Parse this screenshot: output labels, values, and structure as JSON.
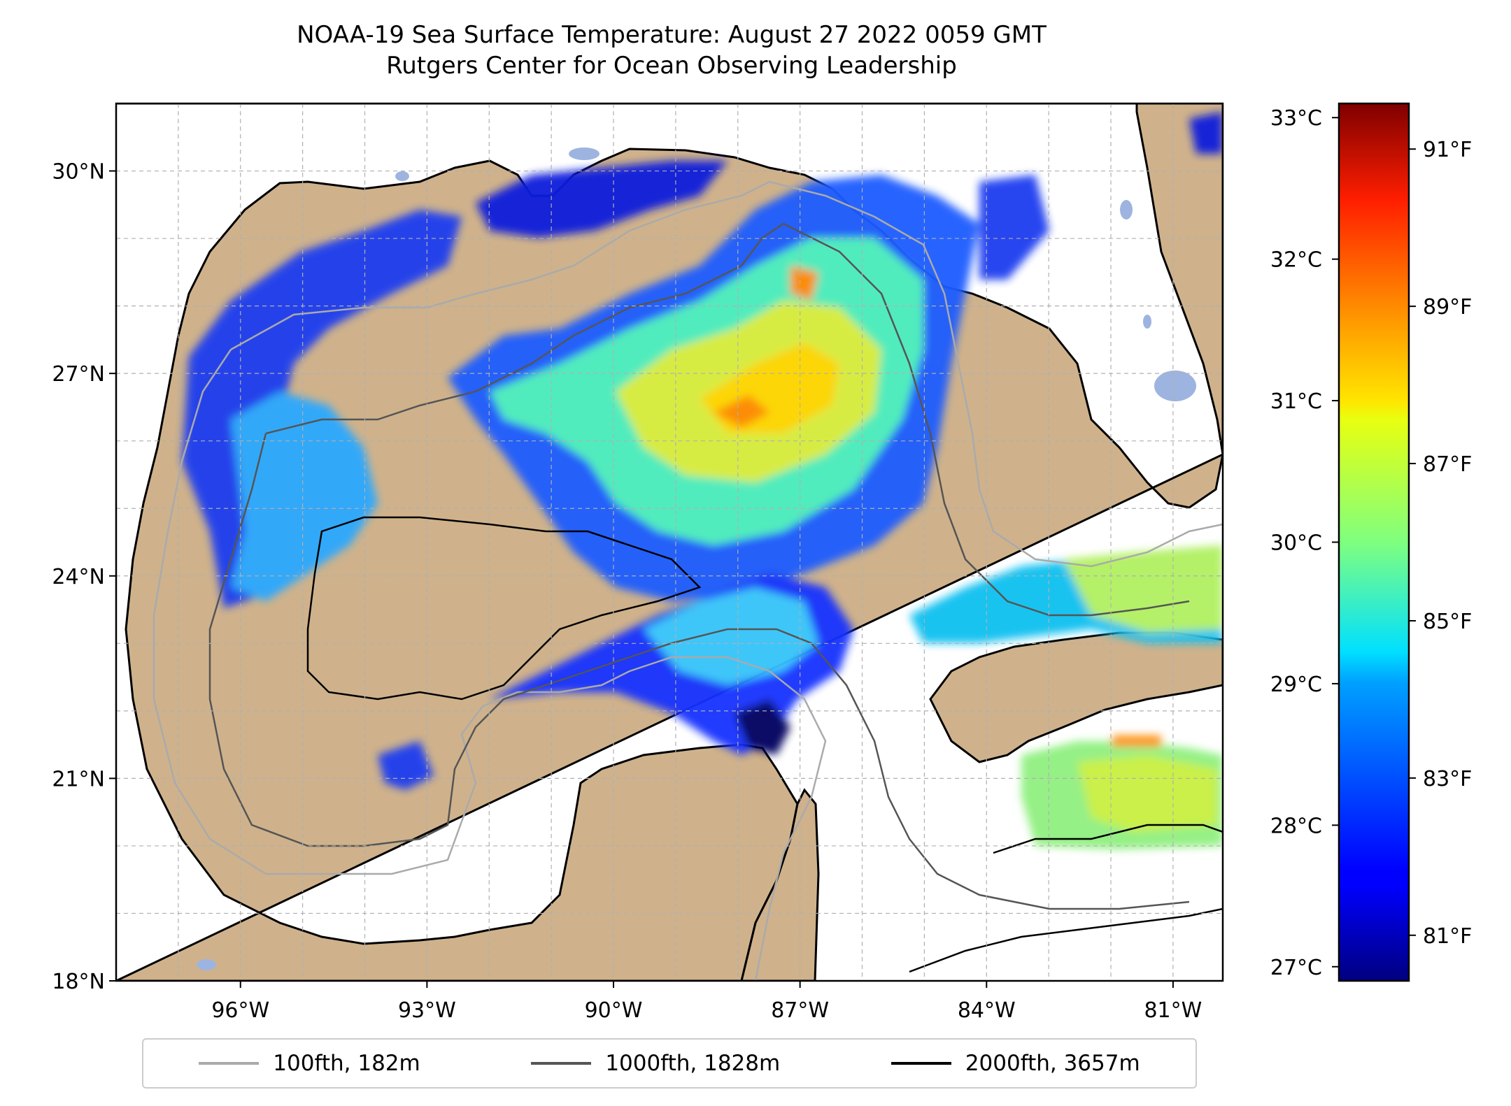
{
  "title": {
    "line1": "NOAA-19 Sea Surface Temperature: August 27 2022 0059 GMT",
    "line2": "Rutgers Center for Ocean Observing Leadership"
  },
  "map": {
    "extent": {
      "lon_min": -98.0,
      "lon_max": -80.2,
      "lat_min": 18.0,
      "lat_max": 31.0
    },
    "lat_ticks": [
      {
        "value": 30,
        "label": "30°N"
      },
      {
        "value": 27,
        "label": "27°N"
      },
      {
        "value": 24,
        "label": "24°N"
      },
      {
        "value": 21,
        "label": "21°N"
      },
      {
        "value": 18,
        "label": "18°N"
      }
    ],
    "lon_ticks": [
      {
        "value": -96,
        "label": "96°W"
      },
      {
        "value": -93,
        "label": "93°W"
      },
      {
        "value": -90,
        "label": "90°W"
      },
      {
        "value": -87,
        "label": "87°W"
      },
      {
        "value": -84,
        "label": "84°W"
      },
      {
        "value": -81,
        "label": "81°W"
      }
    ],
    "land_color": "#cfb28b",
    "water_body_color": "#9db4e0",
    "gridlines": true
  },
  "colorbar": {
    "colormap": "jet",
    "min_c": 26.9,
    "max_c": 33.1,
    "celsius_ticks": [
      {
        "value": 33,
        "label": "33°C"
      },
      {
        "value": 32,
        "label": "32°C"
      },
      {
        "value": 31,
        "label": "31°C"
      },
      {
        "value": 30,
        "label": "30°C"
      },
      {
        "value": 29,
        "label": "29°C"
      },
      {
        "value": 28,
        "label": "28°C"
      },
      {
        "value": 27,
        "label": "27°C"
      }
    ],
    "fahrenheit_ticks": [
      {
        "value": 91,
        "label": "91°F"
      },
      {
        "value": 89,
        "label": "89°F"
      },
      {
        "value": 87,
        "label": "87°F"
      },
      {
        "value": 85,
        "label": "85°F"
      },
      {
        "value": 83,
        "label": "83°F"
      },
      {
        "value": 81,
        "label": "81°F"
      }
    ]
  },
  "legend": {
    "items": [
      {
        "label": "100fth, 182m",
        "color": "#aaaaaa"
      },
      {
        "label": "1000fth, 1828m",
        "color": "#555555"
      },
      {
        "label": "2000fth, 3657m",
        "color": "#000000"
      }
    ]
  }
}
